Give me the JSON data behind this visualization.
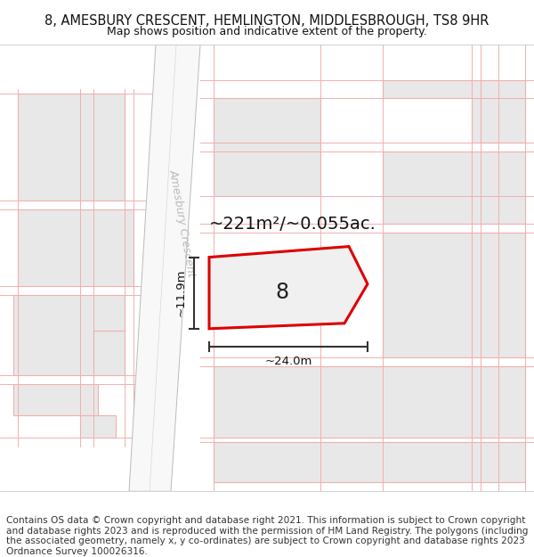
{
  "title": "8, AMESBURY CRESCENT, HEMLINGTON, MIDDLESBROUGH, TS8 9HR",
  "subtitle": "Map shows position and indicative extent of the property.",
  "footer": "Contains OS data © Crown copyright and database right 2021. This information is subject to Crown copyright and database rights 2023 and is reproduced with the permission of HM Land Registry. The polygons (including the associated geometry, namely x, y co-ordinates) are subject to Crown copyright and database rights 2023 Ordnance Survey 100026316.",
  "title_fontsize": 10.5,
  "subtitle_fontsize": 9.0,
  "footer_fontsize": 7.6,
  "map_bg": "#ffffff",
  "bldg_fill": "#e8e8e8",
  "bldg_edge": "#f0b0b0",
  "bldg_lw": 0.8,
  "road_fill": "#f5f5f5",
  "road_edge": "#cccccc",
  "plot_edge": "#dd0000",
  "plot_fill": "#f0f0f0",
  "plot_lw": 2.2,
  "dim_color": "#333333",
  "street_color": "#bbbbbb",
  "area_text": "~221m²/~0.055ac.",
  "area_fontsize": 14,
  "label_8": "8",
  "label_fontsize": 17,
  "dim_width": "~24.0m",
  "dim_height": "~11.9m",
  "dim_fontsize": 9.5,
  "street_label": "Amesbury Crescent",
  "street_fontsize": 9
}
